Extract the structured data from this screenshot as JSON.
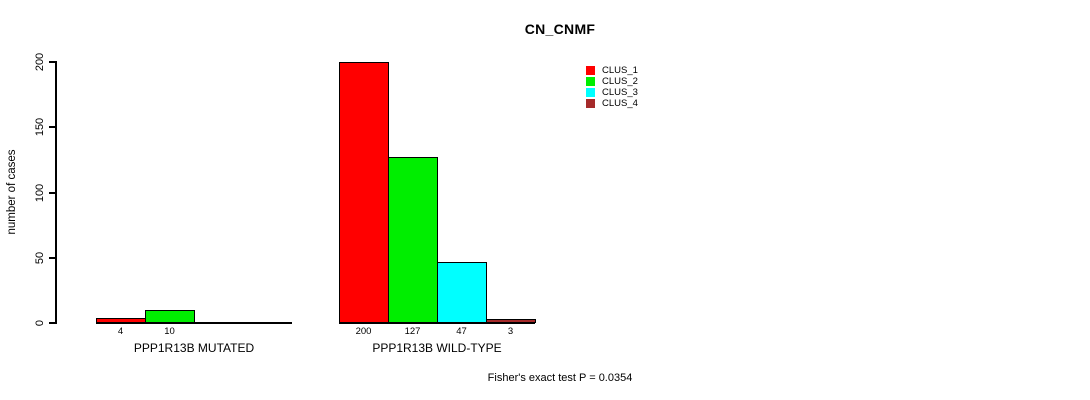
{
  "chart_data": {
    "type": "bar",
    "title": "CN_CNMF",
    "ylabel": "number of cases",
    "ylim": [
      0,
      200
    ],
    "yticks": [
      0,
      50,
      100,
      150,
      200
    ],
    "grid": false,
    "legend_position": "top-right",
    "legend": [
      {
        "name": "CLUS_1",
        "color": "#ff0000"
      },
      {
        "name": "CLUS_2",
        "color": "#00ee00"
      },
      {
        "name": "CLUS_3",
        "color": "#00ffff"
      },
      {
        "name": "CLUS_4",
        "color": "#a52a2a"
      }
    ],
    "groups": [
      {
        "label": "PPP1R13B MUTATED",
        "bars": [
          {
            "cluster": "CLUS_1",
            "value": 4
          },
          {
            "cluster": "CLUS_2",
            "value": 10
          }
        ]
      },
      {
        "label": "PPP1R13B WILD-TYPE",
        "bars": [
          {
            "cluster": "CLUS_1",
            "value": 200
          },
          {
            "cluster": "CLUS_2",
            "value": 127
          },
          {
            "cluster": "CLUS_3",
            "value": 47
          },
          {
            "cluster": "CLUS_4",
            "value": 3
          }
        ]
      }
    ],
    "annotation": "Fisher's exact test P = 0.0354"
  }
}
